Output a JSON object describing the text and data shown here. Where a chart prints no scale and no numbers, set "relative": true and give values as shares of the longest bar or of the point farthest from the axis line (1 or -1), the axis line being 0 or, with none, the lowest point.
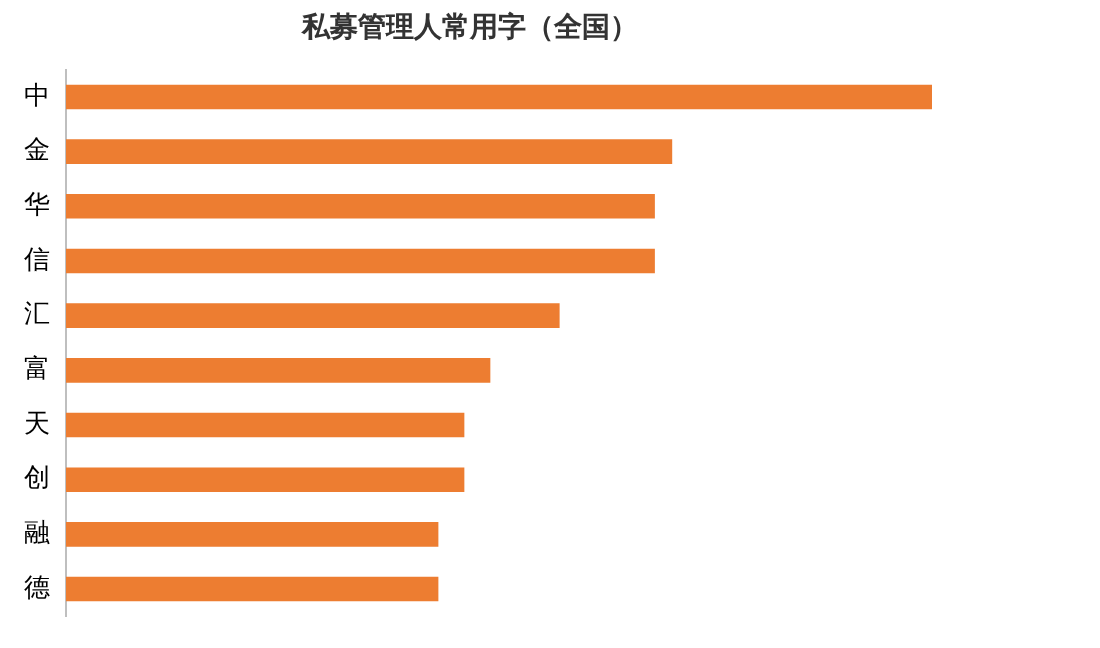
{
  "chart_data": {
    "type": "bar",
    "orientation": "horizontal",
    "relative": true,
    "title": "私募管理人常用字（全国）",
    "categories": [
      "中",
      "金",
      "华",
      "信",
      "汇",
      "富",
      "天",
      "创",
      "融",
      "德"
    ],
    "values": [
      1,
      0.7,
      0.68,
      0.68,
      0.57,
      0.49,
      0.46,
      0.46,
      0.43,
      0.43
    ],
    "color": "#ed7d31"
  }
}
